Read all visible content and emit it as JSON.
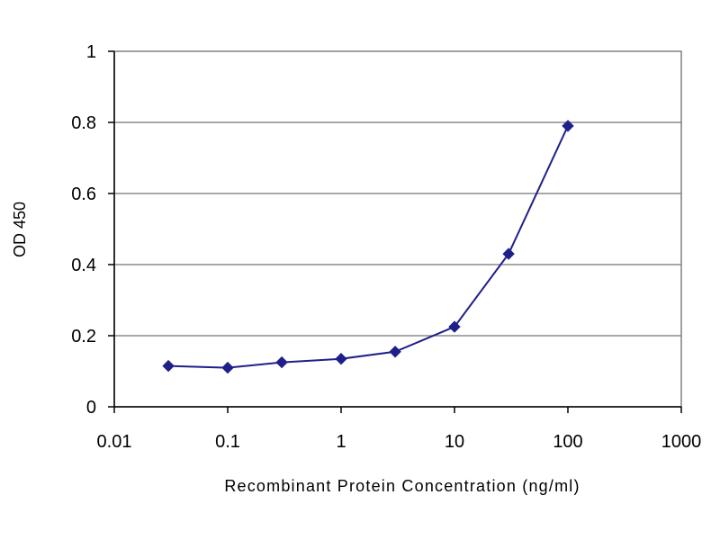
{
  "chart_data": {
    "type": "line",
    "title": "",
    "xlabel": "Recombinant Protein Concentration (ng/ml)",
    "ylabel": "OD 450",
    "x_scale": "log",
    "xlim": [
      0.01,
      1000
    ],
    "ylim": [
      0,
      1
    ],
    "x_ticks": [
      0.01,
      0.1,
      1,
      10,
      100,
      1000
    ],
    "x_tick_labels": [
      "0.01",
      "0.1",
      "1",
      "10",
      "100",
      "1000"
    ],
    "y_ticks": [
      0,
      0.2,
      0.4,
      0.6,
      0.8,
      1
    ],
    "y_tick_labels": [
      "0",
      "0.2",
      "0.4",
      "0.6",
      "0.8",
      "1"
    ],
    "grid": "horizontal",
    "legend": "none",
    "series": [
      {
        "color": "#1f1f8a",
        "marker": "diamond",
        "x": [
          0.03,
          0.1,
          0.3,
          1,
          3,
          10,
          30,
          100
        ],
        "y": [
          0.115,
          0.11,
          0.125,
          0.135,
          0.155,
          0.225,
          0.43,
          0.79
        ]
      }
    ]
  }
}
